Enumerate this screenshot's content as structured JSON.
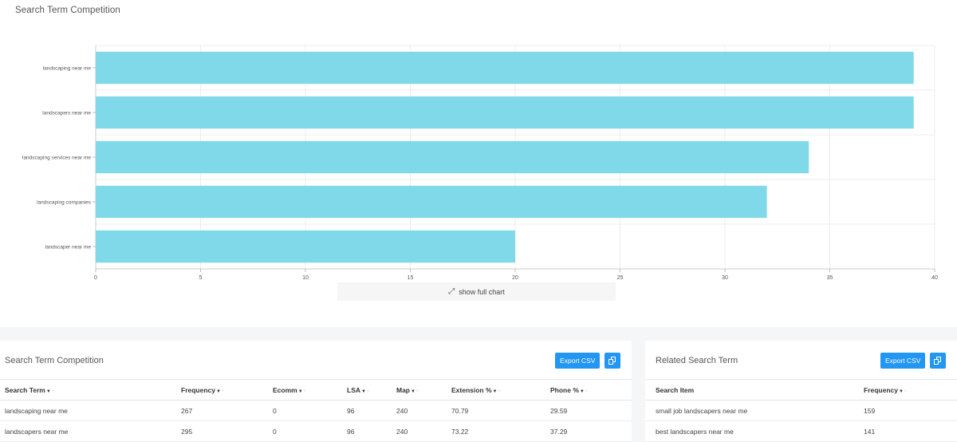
{
  "chart_card": {
    "title": "Search Term Competition",
    "show_full_label": "show full chart"
  },
  "chart_data": {
    "type": "bar",
    "orientation": "horizontal",
    "categories": [
      "landscaping near me",
      "landscapers near me",
      "landscaping services near me",
      "landscaping companies",
      "landscaper near me"
    ],
    "values": [
      39,
      39,
      34,
      32,
      20
    ],
    "xticks": [
      "0",
      "5",
      "10",
      "15",
      "20",
      "25",
      "30",
      "35",
      "40"
    ],
    "xlim": [
      0,
      40
    ],
    "grid": true,
    "bar_color": "#80d9e9"
  },
  "competition_panel": {
    "title": "Search Term Competition",
    "export_label": "Export CSV",
    "columns": [
      "Search Term",
      "Frequency",
      "Ecomm",
      "LSA",
      "Map",
      "Extension %",
      "Phone %"
    ],
    "rows": [
      [
        "landscaping near me",
        "267",
        "0",
        "96",
        "240",
        "70.79",
        "29.59"
      ],
      [
        "landscapers near me",
        "295",
        "0",
        "96",
        "240",
        "73.22",
        "37.29"
      ]
    ]
  },
  "related_panel": {
    "title": "Related Search Term",
    "export_label": "Export CSV",
    "columns": [
      "Search Item",
      "Frequency"
    ],
    "rows": [
      [
        "small job landscapers near me",
        "159"
      ],
      [
        "best landscapers near me",
        "141"
      ]
    ]
  },
  "colors": {
    "accent": "#2196f3",
    "bar": "#80d9e9"
  }
}
